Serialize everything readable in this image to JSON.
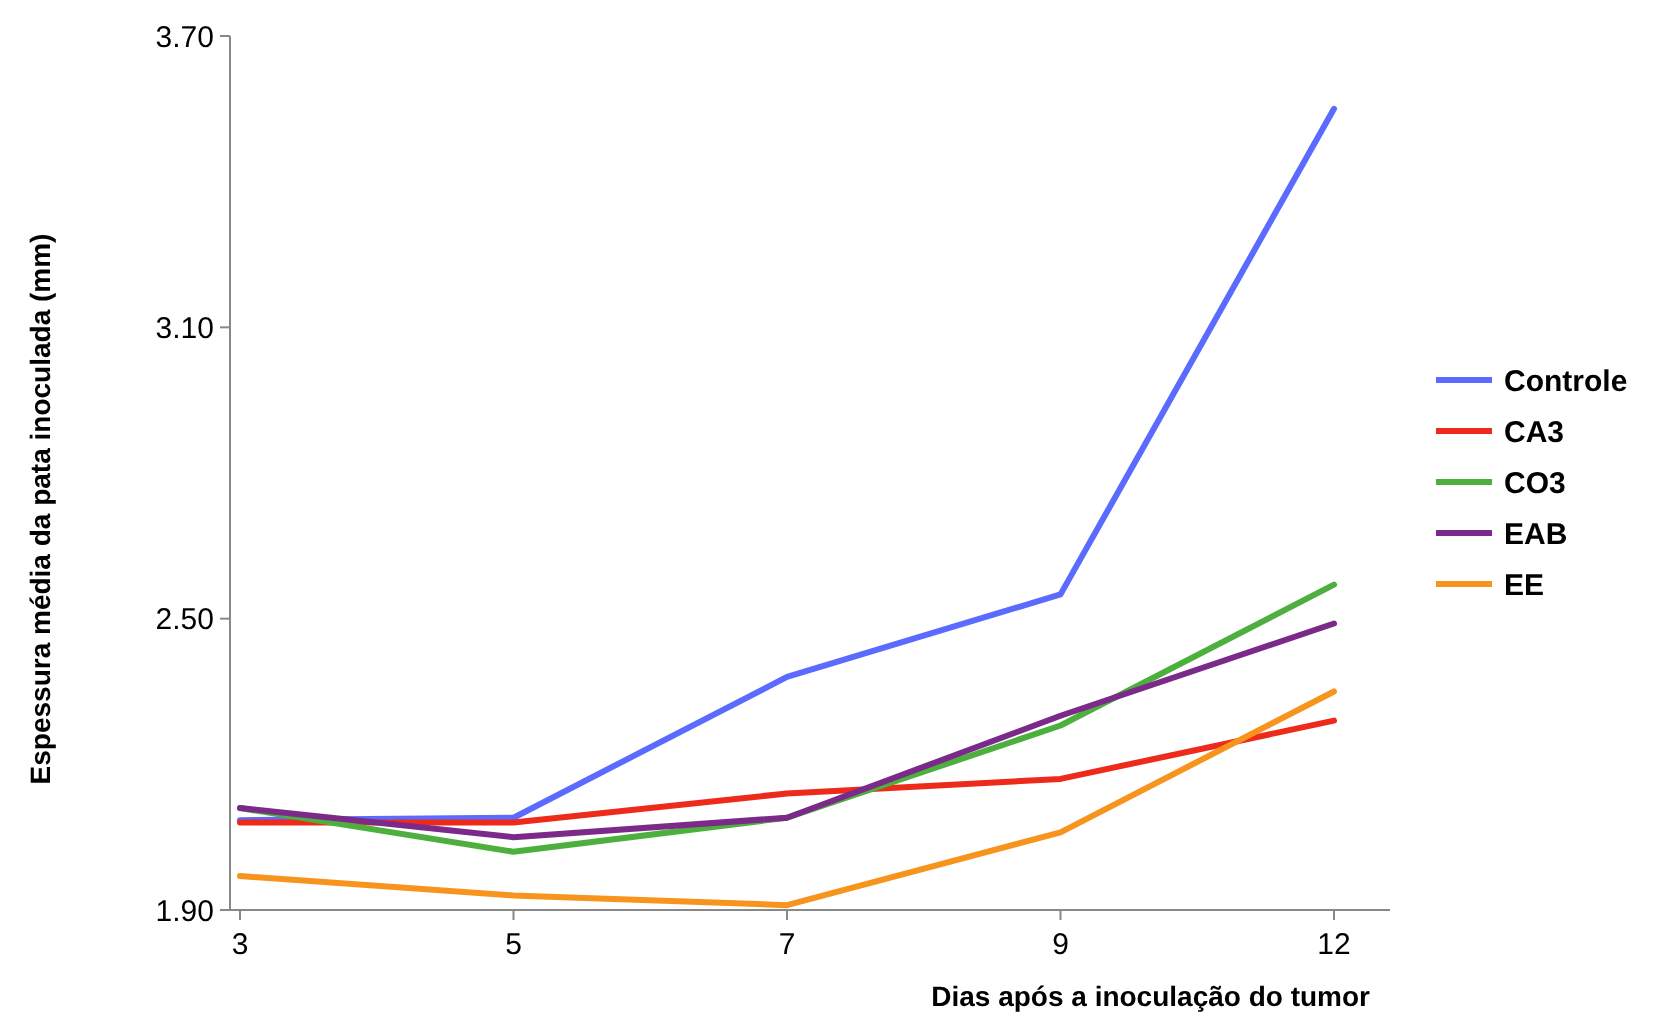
{
  "chart_data": {
    "type": "line",
    "xlabel": "Dias após a inoculação do tumor",
    "ylabel": "Espessura média da pata inoculada (mm)",
    "categories": [
      "3",
      "5",
      "7",
      "9",
      "12"
    ],
    "ylim": [
      1.9,
      3.7
    ],
    "yticks": [
      {
        "value": 1.9,
        "label": "1.90"
      },
      {
        "value": 2.5,
        "label": "2.50"
      },
      {
        "value": 3.1,
        "label": "3.10"
      },
      {
        "value": 3.7,
        "label": "3.70"
      }
    ],
    "grid": false,
    "legend": "right",
    "marker": "none",
    "line_style": "solid",
    "series": [
      {
        "name": "Controle",
        "color": "#5b6bff",
        "values": [
          2.085,
          2.09,
          2.38,
          2.55,
          3.55
        ]
      },
      {
        "name": "CA3",
        "color": "#ee2a1b",
        "values": [
          2.08,
          2.08,
          2.14,
          2.17,
          2.29
        ]
      },
      {
        "name": "CO3",
        "color": "#4caf3e",
        "values": [
          2.11,
          2.02,
          2.09,
          2.28,
          2.57
        ]
      },
      {
        "name": "EAB",
        "color": "#7b2a8a",
        "values": [
          2.11,
          2.05,
          2.09,
          2.3,
          2.49
        ]
      },
      {
        "name": "EE",
        "color": "#f7941d",
        "values": [
          1.97,
          1.93,
          1.91,
          2.06,
          2.35
        ]
      }
    ]
  }
}
